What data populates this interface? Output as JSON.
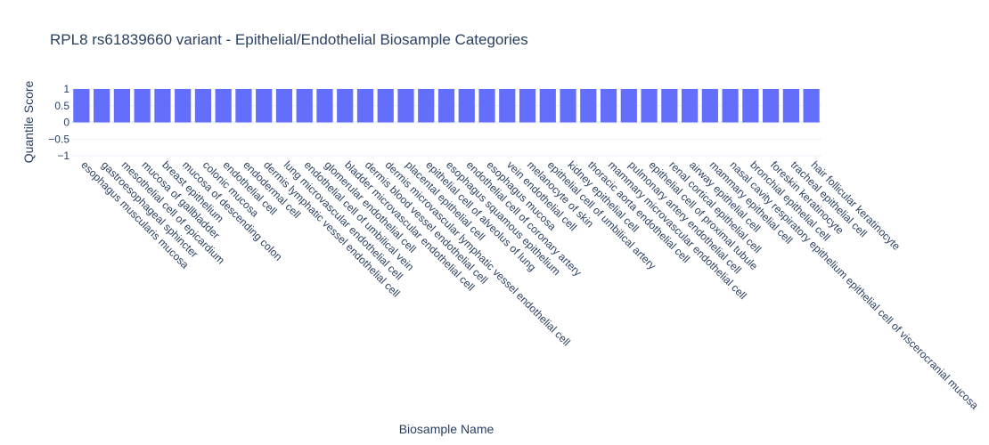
{
  "chart_data": {
    "type": "bar",
    "title": "RPL8 rs61839660 variant - Epithelial/Endothelial Biosample Categories",
    "xlabel": "Biosample Name",
    "ylabel": "Quantile Score",
    "ylim": [
      -1,
      1
    ],
    "yticks": [
      {
        "value": 1,
        "label": "1"
      },
      {
        "value": 0.5,
        "label": "0.5"
      },
      {
        "value": 0,
        "label": "0"
      },
      {
        "value": -0.5,
        "label": "−0.5"
      },
      {
        "value": -1,
        "label": "−1"
      }
    ],
    "grid": true,
    "bar_color": "#636efa",
    "categories": [
      "esophagus muscularis mucosa",
      "gastroesophageal sphincter",
      "mesothelial cell of epicardium",
      "mucosa of gallbladder",
      "breast epithelium",
      "mucosa of descending colon",
      "colonic mucosa",
      "endothelial cell",
      "endodermal cell",
      "dermis lymphatic vessel endothelial cell",
      "lung microvascular endothelial cell",
      "endothelial cell of umbilical vein",
      "glomerular endothelial cell",
      "bladder microvascular endothelial cell",
      "dermis blood vessel endothelial cell",
      "dermis microvascular lymphatic vessel endothelial cell",
      "placental epithelial cell",
      "epithelial cell of alveolus of lung",
      "esophagus squamous epithelium",
      "endothelial cell of coronary artery",
      "esophagus mucosa",
      "vein endothelial cell",
      "melanocyte of skin",
      "epithelial cell of umbilical artery",
      "kidney epithelial cell",
      "thoracic aorta endothelial cell",
      "mammary microvascular endothelial cell",
      "pulmonary artery endothelial cell",
      "epithelial cell of proximal tubule",
      "renal cortical epithelial cell",
      "airway epithelial cell",
      "mammary epithelial cell",
      "nasal cavity respiratory epithelium epithelial cell of viscerocranial mucosa",
      "bronchial epithelial cell",
      "foreskin keratinocyte",
      "tracheal epithelial cell",
      "hair follicular keratinocyte"
    ],
    "values": [
      1,
      1,
      1,
      1,
      1,
      1,
      1,
      1,
      1,
      1,
      1,
      1,
      1,
      1,
      1,
      1,
      1,
      1,
      1,
      1,
      1,
      1,
      1,
      1,
      1,
      1,
      1,
      1,
      1,
      1,
      1,
      1,
      1,
      1,
      1,
      1,
      1
    ]
  }
}
